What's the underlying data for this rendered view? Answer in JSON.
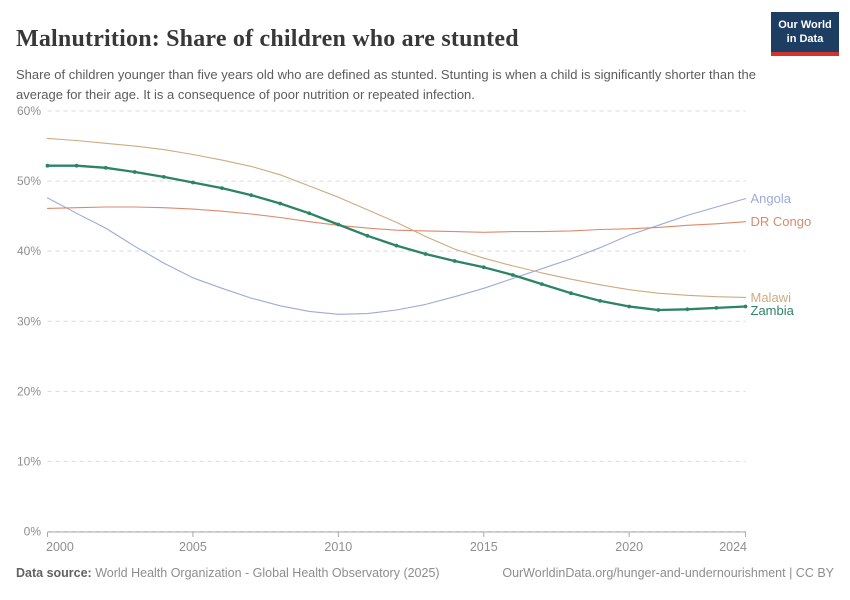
{
  "header": {
    "title": "Malnutrition: Share of children who are stunted",
    "subtitle": "Share of children younger than five years old who are defined as stunted. Stunting is when a child is significantly shorter than the average for their age. It is a consequence of poor nutrition or repeated infection.",
    "logo": {
      "line1": "Our World",
      "line2": "in Data",
      "bg_color": "#1d3d63",
      "accent_color": "#d0342c"
    }
  },
  "chart_data": {
    "type": "line",
    "title": "Malnutrition: Share of children who are stunted",
    "xlabel": "",
    "ylabel": "",
    "xlim": [
      2000,
      2024
    ],
    "ylim": [
      0,
      62
    ],
    "grid": "horizontal-dashed",
    "legend_position": "right-edge-labels",
    "x": [
      2000,
      2001,
      2002,
      2003,
      2004,
      2005,
      2006,
      2007,
      2008,
      2009,
      2010,
      2011,
      2012,
      2013,
      2014,
      2015,
      2016,
      2017,
      2018,
      2019,
      2020,
      2021,
      2022,
      2023,
      2024
    ],
    "x_ticks": [
      2000,
      2005,
      2010,
      2015,
      2020,
      2024
    ],
    "y_ticks": [
      {
        "value": 0,
        "label": "0%"
      },
      {
        "value": 10,
        "label": "10%"
      },
      {
        "value": 20,
        "label": "20%"
      },
      {
        "value": 30,
        "label": "30%"
      },
      {
        "value": 40,
        "label": "40%"
      },
      {
        "value": 50,
        "label": "50%"
      },
      {
        "value": 60,
        "label": "60%"
      }
    ],
    "series": [
      {
        "name": "Angola",
        "color": "#9dabd6",
        "line_width": 1.1,
        "markers": false,
        "values": [
          47.6,
          45.4,
          43.3,
          40.7,
          38.3,
          36.2,
          34.7,
          33.3,
          32.2,
          31.4,
          31.0,
          31.1,
          31.6,
          32.4,
          33.5,
          34.7,
          36.1,
          37.5,
          38.9,
          40.5,
          42.3,
          43.7,
          45.1,
          46.3,
          47.5
        ]
      },
      {
        "name": "DR Congo",
        "color": "#dc8a6d",
        "line_width": 1.1,
        "markers": false,
        "values": [
          46.1,
          46.2,
          46.3,
          46.3,
          46.2,
          46.0,
          45.7,
          45.3,
          44.8,
          44.2,
          43.7,
          43.3,
          43.0,
          42.9,
          42.8,
          42.7,
          42.8,
          42.8,
          42.9,
          43.1,
          43.2,
          43.4,
          43.7,
          43.9,
          44.2
        ]
      },
      {
        "name": "Malawi",
        "color": "#cfaa80",
        "line_width": 1.1,
        "markers": false,
        "values": [
          56.1,
          55.8,
          55.4,
          55.0,
          54.5,
          53.8,
          53.0,
          52.1,
          50.9,
          49.3,
          47.7,
          45.9,
          44.1,
          42.1,
          40.3,
          39.0,
          37.9,
          36.9,
          36.0,
          35.2,
          34.5,
          34.0,
          33.7,
          33.5,
          33.4
        ]
      },
      {
        "name": "Zambia",
        "color": "#2c8465",
        "line_width": 2.3,
        "markers": true,
        "values": [
          52.2,
          52.2,
          51.9,
          51.3,
          50.6,
          49.8,
          49.0,
          48.0,
          46.8,
          45.4,
          43.8,
          42.2,
          40.8,
          39.6,
          38.6,
          37.7,
          36.6,
          35.3,
          34.0,
          32.9,
          32.1,
          31.6,
          31.7,
          31.9,
          32.1
        ]
      }
    ]
  },
  "footer": {
    "datasource_label": "Data source:",
    "datasource_value": " World Health Organization - Global Health Observatory (2025)",
    "link": "OurWorldinData.org/hunger-and-undernourishment | CC BY"
  }
}
